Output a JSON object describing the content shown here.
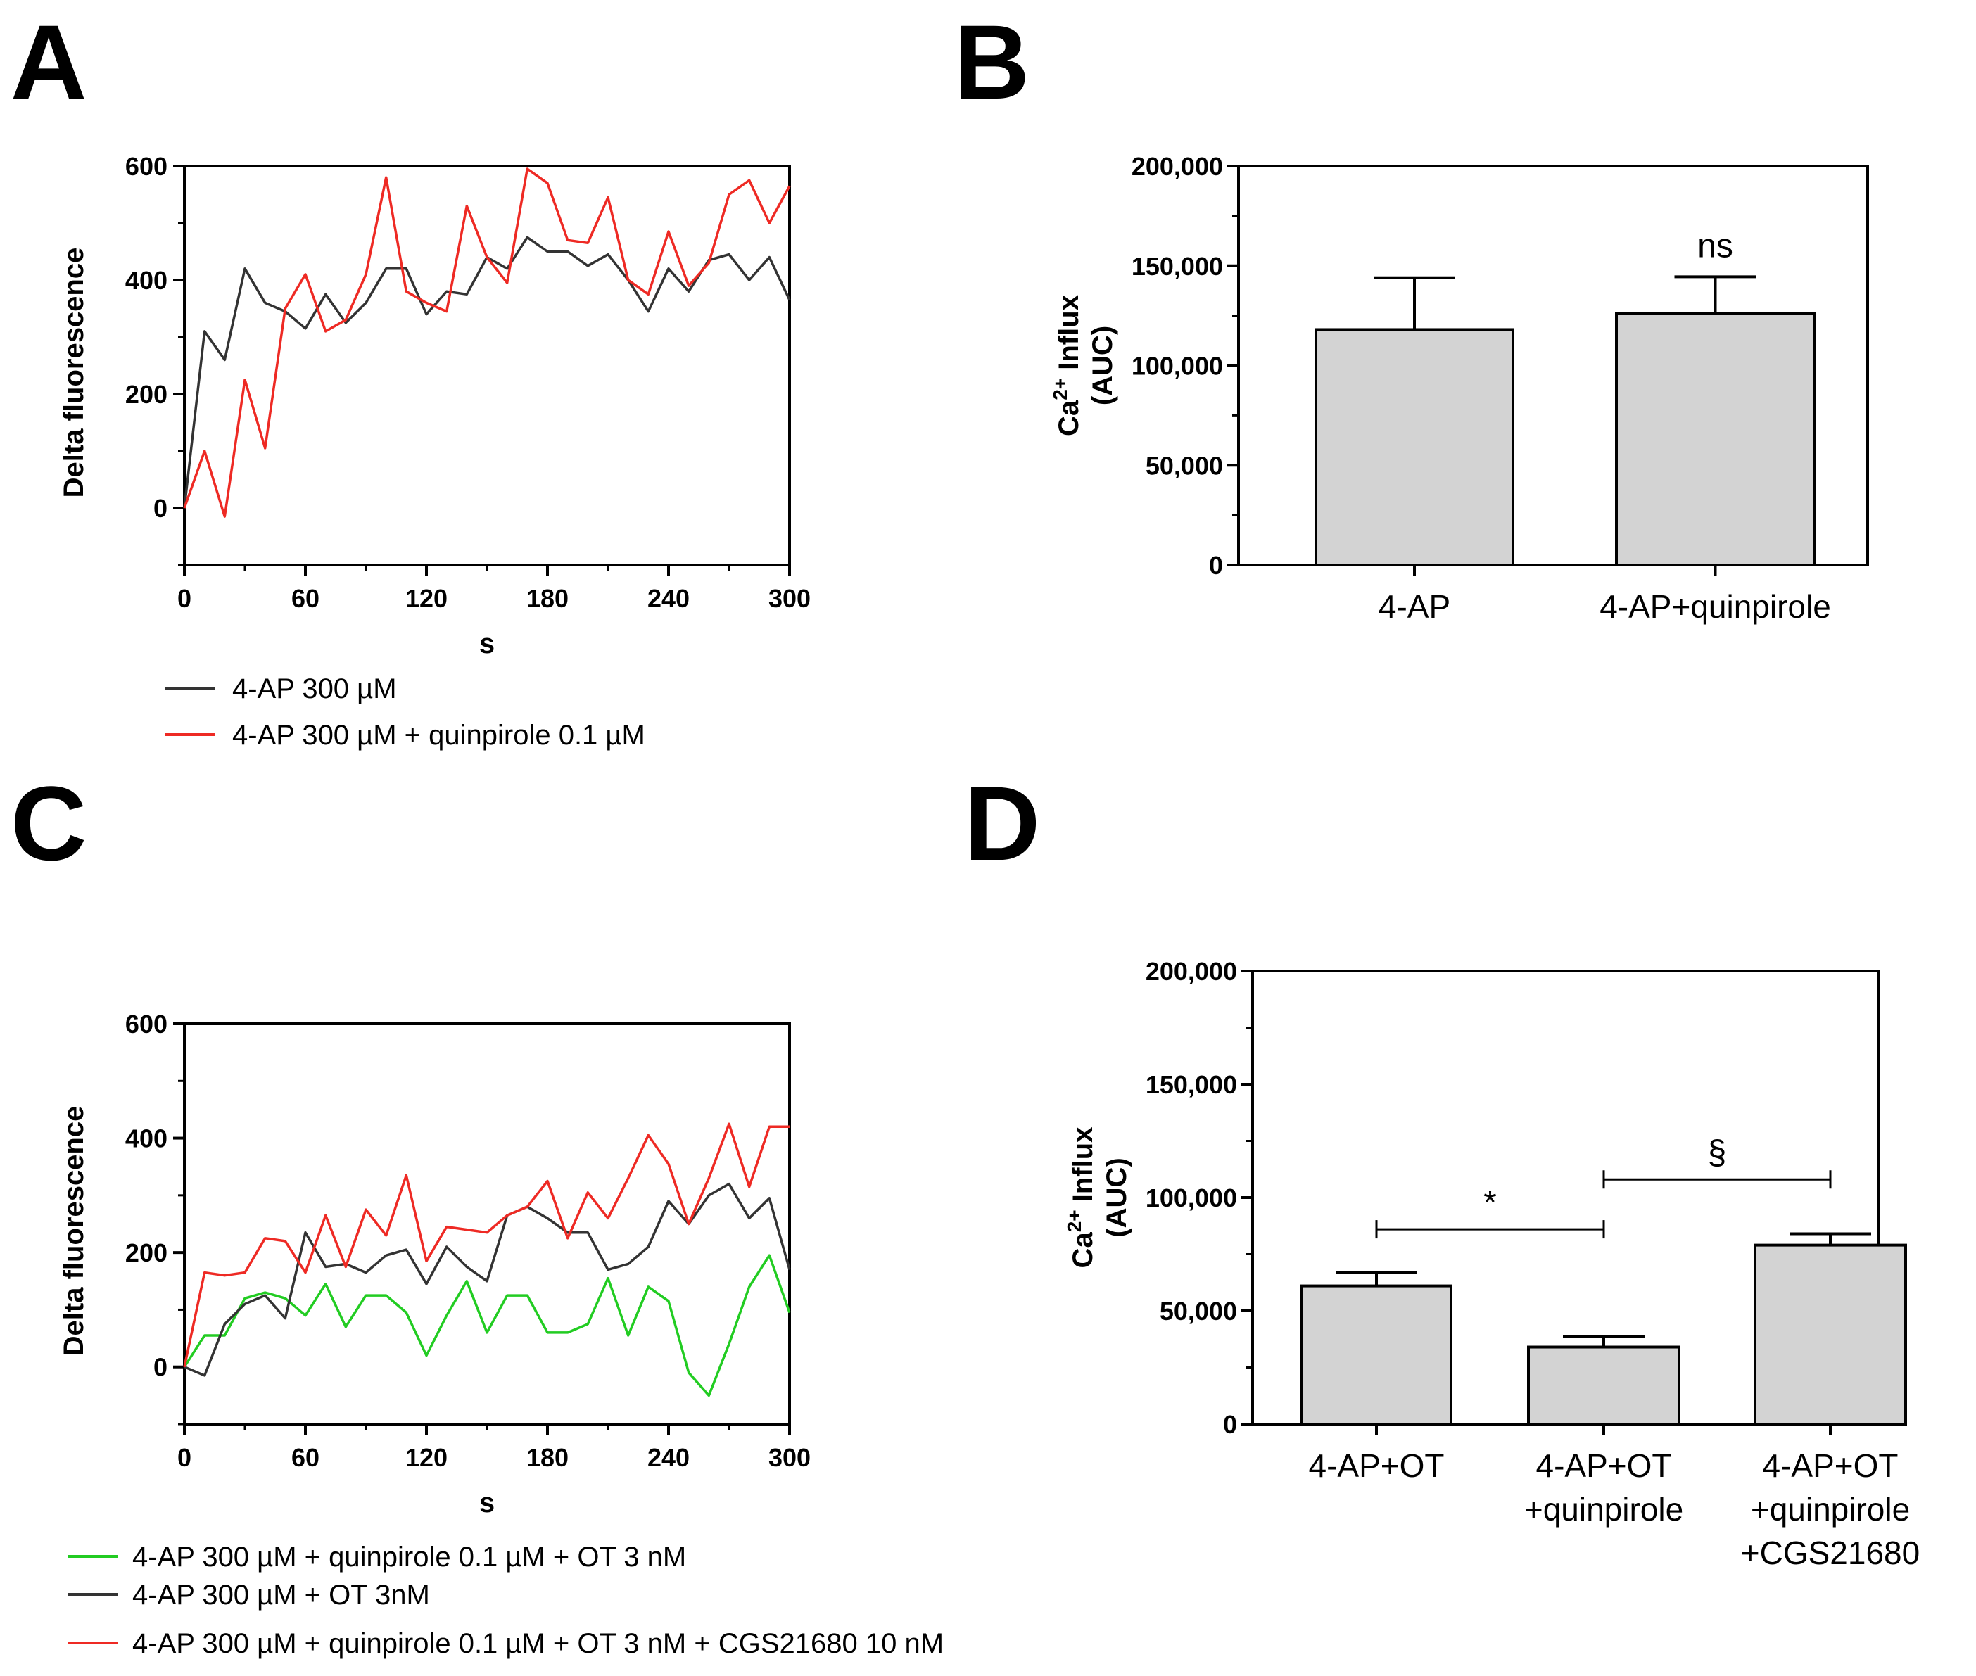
{
  "chart_data": [
    {
      "id": "A",
      "type": "line",
      "panel_label": "A",
      "xlabel": "s",
      "ylabel": "Delta fluorescence",
      "xlim": [
        0,
        300
      ],
      "ylim": [
        -100,
        600
      ],
      "xticks": [
        0,
        60,
        120,
        180,
        240,
        300
      ],
      "yticks": [
        0,
        200,
        400,
        600
      ],
      "x": [
        0,
        10,
        20,
        30,
        40,
        50,
        60,
        70,
        80,
        90,
        100,
        110,
        120,
        130,
        140,
        150,
        160,
        170,
        180,
        190,
        200,
        210,
        220,
        230,
        240,
        250,
        260,
        270,
        280,
        290,
        300
      ],
      "series": [
        {
          "name": "4-AP 300 µM",
          "color": "#333333",
          "values": [
            0,
            310,
            260,
            420,
            360,
            345,
            315,
            375,
            325,
            360,
            420,
            420,
            340,
            380,
            375,
            440,
            420,
            475,
            450,
            450,
            425,
            445,
            400,
            345,
            420,
            380,
            435,
            445,
            400,
            440,
            365
          ]
        },
        {
          "name": "4-AP 300 µM + quinpirole 0.1  µM",
          "color": "#ee2a24",
          "values": [
            0,
            100,
            -15,
            225,
            105,
            350,
            410,
            310,
            330,
            410,
            580,
            380,
            360,
            345,
            530,
            440,
            395,
            595,
            570,
            470,
            465,
            545,
            400,
            375,
            485,
            390,
            430,
            550,
            575,
            500,
            565
          ]
        }
      ]
    },
    {
      "id": "B",
      "type": "bar",
      "panel_label": "B",
      "ylabel": "Ca2+ Influx (AUC)",
      "ylim": [
        0,
        200000
      ],
      "yticks": [
        0,
        50000,
        100000,
        150000,
        200000
      ],
      "ytick_labels": [
        "0",
        "50,000",
        "100,000",
        "150,000",
        "200,000"
      ],
      "categories": [
        [
          "4-AP"
        ],
        [
          "4-AP+quinpirole"
        ]
      ],
      "values": [
        118000,
        126000
      ],
      "errors": [
        26000,
        18500
      ],
      "bar_color": "#d3d3d3",
      "annotations": [
        {
          "text": "ns",
          "category": 1
        }
      ]
    },
    {
      "id": "C",
      "type": "line",
      "panel_label": "C",
      "xlabel": "s",
      "ylabel": "Delta fluorescence",
      "xlim": [
        0,
        300
      ],
      "ylim": [
        -100,
        600
      ],
      "xticks": [
        0,
        60,
        120,
        180,
        240,
        300
      ],
      "yticks": [
        0,
        200,
        400,
        600
      ],
      "x": [
        0,
        10,
        20,
        30,
        40,
        50,
        60,
        70,
        80,
        90,
        100,
        110,
        120,
        130,
        140,
        150,
        160,
        170,
        180,
        190,
        200,
        210,
        220,
        230,
        240,
        250,
        260,
        270,
        280,
        290,
        300
      ],
      "series": [
        {
          "name": "4-AP 300 µM + quinpirole 0.1  µM + OT 3 nM",
          "color": "#22cc22",
          "values": [
            0,
            55,
            55,
            120,
            130,
            120,
            90,
            145,
            70,
            125,
            125,
            95,
            20,
            90,
            150,
            60,
            125,
            125,
            60,
            60,
            75,
            155,
            55,
            140,
            115,
            -10,
            -50,
            40,
            140,
            195,
            95
          ]
        },
        {
          "name": "4-AP 300 µM + OT 3nM",
          "color": "#333333",
          "values": [
            0,
            -15,
            75,
            110,
            125,
            85,
            235,
            175,
            180,
            165,
            195,
            205,
            145,
            210,
            175,
            150,
            265,
            280,
            260,
            235,
            235,
            170,
            180,
            210,
            290,
            250,
            300,
            320,
            260,
            295,
            170
          ]
        },
        {
          "name": "4-AP 300 µM + quinpirole 0.1  µM + OT 3 nM + CGS21680 10 nM",
          "color": "#ee2a24",
          "values": [
            0,
            165,
            160,
            165,
            225,
            220,
            165,
            265,
            175,
            275,
            230,
            335,
            185,
            245,
            240,
            235,
            265,
            280,
            325,
            225,
            305,
            260,
            330,
            405,
            355,
            250,
            330,
            425,
            315,
            420,
            420
          ]
        }
      ]
    },
    {
      "id": "D",
      "type": "bar",
      "panel_label": "D",
      "ylabel": "Ca2+ Influx (AUC)",
      "ylim": [
        0,
        200000
      ],
      "yticks": [
        0,
        50000,
        100000,
        150000,
        200000
      ],
      "ytick_labels": [
        "0",
        "50,000",
        "100,000",
        "150,000",
        "200,000"
      ],
      "categories": [
        [
          "4-AP+OT"
        ],
        [
          "4-AP+OT",
          "+quinpirole"
        ],
        [
          "4-AP+OT",
          "+quinpirole",
          "+CGS21680"
        ]
      ],
      "values": [
        61000,
        34000,
        79000
      ],
      "errors": [
        6000,
        4500,
        5000
      ],
      "bar_color": "#d3d3d3",
      "comparisons": [
        {
          "from": 0,
          "to": 1,
          "value": 86000,
          "label": "*"
        },
        {
          "from": 1,
          "to": 2,
          "value": 108000,
          "label": "§"
        }
      ]
    }
  ]
}
